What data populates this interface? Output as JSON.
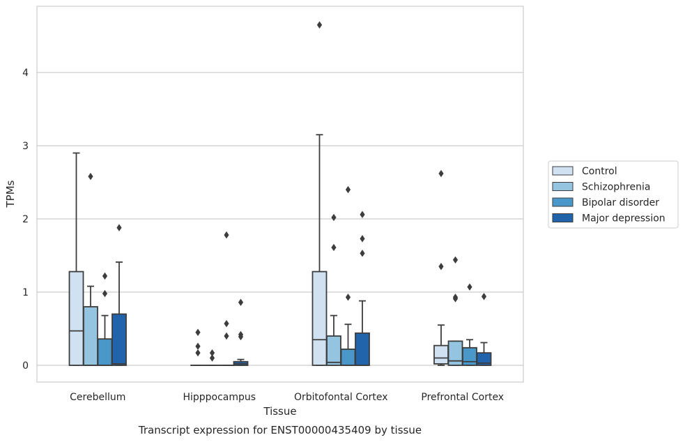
{
  "chart_data": {
    "type": "box",
    "title": "",
    "caption": "Transcript expression for ENST00000435409 by tissue",
    "xlabel": "Tissue",
    "ylabel": "TPMs",
    "ylim": [
      -0.22,
      4.9
    ],
    "yticks": [
      0,
      1,
      2,
      3,
      4
    ],
    "grid": "horizontal",
    "legend_position": "right",
    "categories": [
      "Cerebellum",
      "Hipppocampus",
      "Orbitofontal Cortex",
      "Prefrontal Cortex"
    ],
    "series": [
      {
        "name": "Control",
        "color": "#d0e1f2",
        "boxes": [
          {
            "q1": 0,
            "median": 0.47,
            "q3": 1.28,
            "whisker_low": 0,
            "whisker_high": 2.9,
            "outliers": []
          },
          {
            "q1": 0,
            "median": 0,
            "q3": 0,
            "whisker_low": 0,
            "whisker_high": 0,
            "outliers": [
              0.45,
              0.26,
              0.17
            ]
          },
          {
            "q1": 0,
            "median": 0.35,
            "q3": 1.28,
            "whisker_low": 0,
            "whisker_high": 3.15,
            "outliers": [
              4.65
            ]
          },
          {
            "q1": 0.02,
            "median": 0.1,
            "q3": 0.27,
            "whisker_low": 0,
            "whisker_high": 0.55,
            "outliers": [
              2.62,
              1.35
            ]
          }
        ]
      },
      {
        "name": "Schizophrenia",
        "color": "#94c4df",
        "boxes": [
          {
            "q1": 0,
            "median": 0,
            "q3": 0.8,
            "whisker_low": 0,
            "whisker_high": 1.08,
            "outliers": [
              2.58
            ]
          },
          {
            "q1": 0,
            "median": 0,
            "q3": 0,
            "whisker_low": 0,
            "whisker_high": 0,
            "outliers": [
              0.17,
              0.1
            ]
          },
          {
            "q1": 0,
            "median": 0.04,
            "q3": 0.4,
            "whisker_low": 0,
            "whisker_high": 0.68,
            "outliers": [
              2.02,
              1.61
            ]
          },
          {
            "q1": 0,
            "median": 0.06,
            "q3": 0.33,
            "whisker_low": 0,
            "whisker_high": 0.33,
            "outliers": [
              1.44,
              0.93,
              0.91
            ]
          }
        ]
      },
      {
        "name": "Bipolar disorder",
        "color": "#4a98c9",
        "boxes": [
          {
            "q1": 0,
            "median": 0,
            "q3": 0.36,
            "whisker_low": 0,
            "whisker_high": 0.68,
            "outliers": [
              1.22,
              0.98
            ]
          },
          {
            "q1": 0,
            "median": 0,
            "q3": 0,
            "whisker_low": 0,
            "whisker_high": 0,
            "outliers": [
              1.78,
              0.57,
              0.4
            ]
          },
          {
            "q1": 0,
            "median": 0,
            "q3": 0.22,
            "whisker_low": 0,
            "whisker_high": 0.56,
            "outliers": [
              2.4,
              0.93
            ]
          },
          {
            "q1": 0,
            "median": 0.05,
            "q3": 0.24,
            "whisker_low": 0,
            "whisker_high": 0.35,
            "outliers": [
              1.07
            ]
          }
        ]
      },
      {
        "name": "Major depression",
        "color": "#2164ab",
        "boxes": [
          {
            "q1": 0,
            "median": 0.02,
            "q3": 0.7,
            "whisker_low": 0,
            "whisker_high": 1.41,
            "outliers": [
              1.88
            ]
          },
          {
            "q1": 0,
            "median": 0.02,
            "q3": 0.05,
            "whisker_low": 0,
            "whisker_high": 0.08,
            "outliers": [
              0.86,
              0.42,
              0.39
            ]
          },
          {
            "q1": 0,
            "median": 0,
            "q3": 0.44,
            "whisker_low": 0,
            "whisker_high": 0.88,
            "outliers": [
              2.06,
              1.73,
              1.53
            ]
          },
          {
            "q1": 0,
            "median": 0.03,
            "q3": 0.17,
            "whisker_low": 0,
            "whisker_high": 0.31,
            "outliers": [
              0.94
            ]
          }
        ]
      }
    ]
  }
}
